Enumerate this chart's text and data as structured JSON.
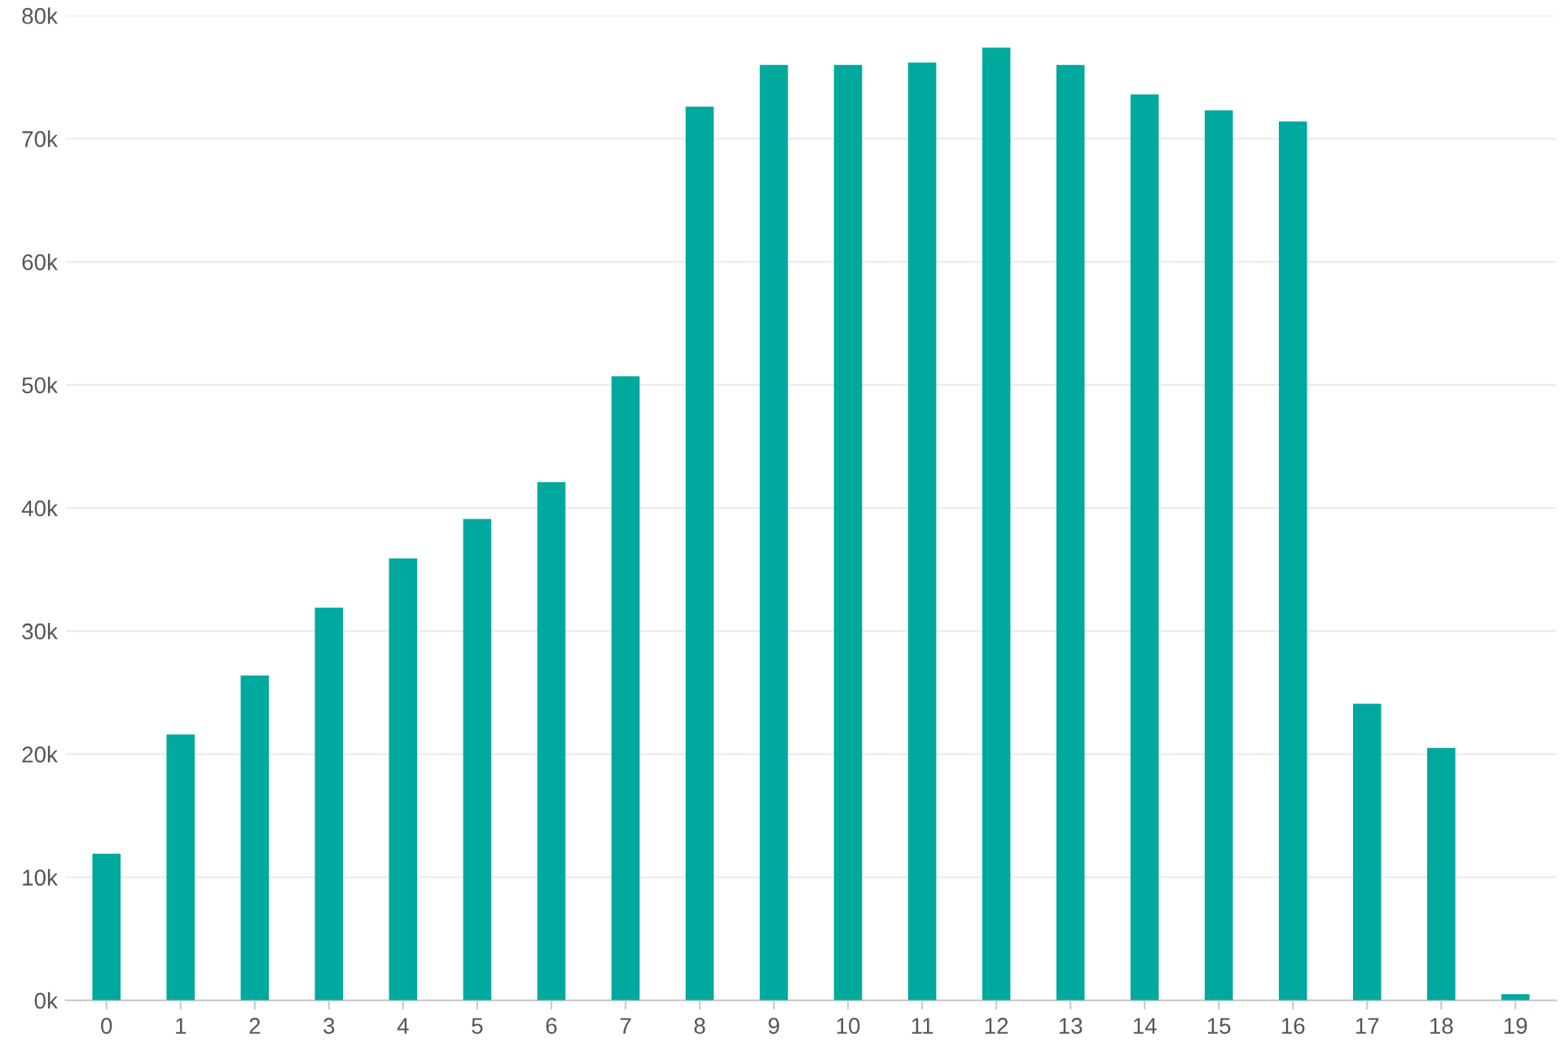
{
  "chart_data": {
    "type": "bar",
    "categories": [
      "0",
      "1",
      "2",
      "3",
      "4",
      "5",
      "6",
      "7",
      "8",
      "9",
      "10",
      "11",
      "12",
      "13",
      "14",
      "15",
      "16",
      "17",
      "18",
      "19"
    ],
    "values": [
      11900,
      21600,
      26400,
      31900,
      35900,
      39100,
      42100,
      50700,
      72600,
      76000,
      76000,
      76200,
      77400,
      76000,
      73600,
      72300,
      71400,
      24100,
      20500,
      500
    ],
    "color": "#00a99d",
    "ylim": [
      0,
      80000
    ],
    "yticks": [
      {
        "value": 0,
        "label": "0k"
      },
      {
        "value": 10000,
        "label": "10k"
      },
      {
        "value": 20000,
        "label": "20k"
      },
      {
        "value": 30000,
        "label": "30k"
      },
      {
        "value": 40000,
        "label": "40k"
      },
      {
        "value": 50000,
        "label": "50k"
      },
      {
        "value": 60000,
        "label": "60k"
      },
      {
        "value": 70000,
        "label": "70k"
      },
      {
        "value": 80000,
        "label": "80k"
      }
    ],
    "grid": "y"
  }
}
